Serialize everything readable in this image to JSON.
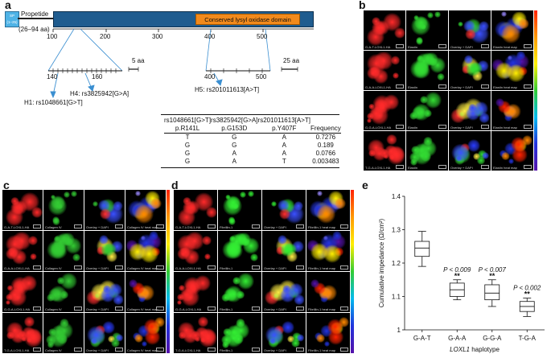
{
  "panels": {
    "a": "a",
    "b": "b",
    "c": "c",
    "d": "d",
    "e": "e"
  },
  "panel_a": {
    "sp_label": "SP\n(1–25)",
    "sp_line1": "SP",
    "sp_line2": "(1–25)",
    "propeptide": "Propetide",
    "propeptide_range": "(26–94 aa)",
    "domain_label": "Conserved lysyl oxidase domain",
    "main_ticks": [
      "100",
      "200",
      "300",
      "400",
      "500"
    ],
    "zoom1_ticks": [
      "140",
      "160"
    ],
    "zoom2_ticks": [
      "400",
      "500"
    ],
    "scale1": "5 aa",
    "scale2": "25 aa",
    "h1": "H1: rs1048661[G>T]",
    "h4": "H4: rs3825942[G>A]",
    "h5": "H5: rs201011613[A>T]",
    "colors": {
      "sp": "#4fb3e6",
      "protein": "#1f5c8f",
      "domain": "#f28a1c",
      "arrow": "#3b8fd1"
    },
    "table": {
      "header1": [
        "rs1048661[G>T]",
        "rs3825942[G>A]",
        "rs201011613[A>T]",
        ""
      ],
      "header2": [
        "p.R141L",
        "p.G153D",
        "p.Y407F",
        "Frequency"
      ],
      "rows": [
        [
          "T",
          "G",
          "A",
          "0.7276"
        ],
        [
          "G",
          "G",
          "A",
          "0.189"
        ],
        [
          "G",
          "A",
          "A",
          "0.0766"
        ],
        [
          "G",
          "A",
          "T",
          "0.003483"
        ]
      ]
    }
  },
  "panel_b": {
    "rows": [
      "G-A-T-LOXL1-HA",
      "G-A-A-LOXL1-HA",
      "G-G-A-LOXL1-HA",
      "T-G-A-LOXL1-HA"
    ],
    "cols": [
      "",
      "Elastin",
      "Overlay + DAPI",
      "Elastin heat map"
    ]
  },
  "panel_c": {
    "rows": [
      "G-A-T-LOXL1-HA",
      "G-A-A-LOXL1-HA",
      "G-G-A-LOXL1-HA",
      "T-G-A-LOXL1-HA"
    ],
    "cols": [
      "",
      "Collagen IV",
      "Overlay + DAPI",
      "Collagen IV heat map"
    ]
  },
  "panel_d": {
    "rows": [
      "G-A-T-LOXL1-HA",
      "G-A-A-LOXL1-HA",
      "G-G-A-LOXL1-HA",
      "T-G-A-LOXL1-HA"
    ],
    "cols": [
      "",
      "Fibrillin-1",
      "Overlay + DAPI",
      "Fibrillin-1 heat map"
    ]
  },
  "chart_data": {
    "type": "box",
    "categories": [
      "G-A-T",
      "G-A-A",
      "G-G-A",
      "T-G-A"
    ],
    "xlabel_italic": "LOXL1",
    "xlabel_rest": " haplotype",
    "ylabel": "Cumulative impedance (Ω/cm²)",
    "ylim": [
      1.0,
      1.4
    ],
    "yticks": [
      "1",
      "1.1",
      "1.2",
      "1.3",
      "1.4"
    ],
    "boxes": [
      {
        "min": 1.19,
        "q1": 1.22,
        "median": 1.245,
        "q3": 1.265,
        "max": 1.295
      },
      {
        "min": 1.09,
        "q1": 1.1,
        "median": 1.12,
        "q3": 1.14,
        "max": 1.15
      },
      {
        "min": 1.07,
        "q1": 1.09,
        "median": 1.11,
        "q3": 1.135,
        "max": 1.15
      },
      {
        "min": 1.04,
        "q1": 1.055,
        "median": 1.07,
        "q3": 1.085,
        "max": 1.095
      }
    ],
    "pvalues": [
      "",
      "P < 0.009",
      "P < 0.007",
      "P < 0.002"
    ],
    "stars": [
      "",
      "**",
      "**",
      "**"
    ]
  }
}
